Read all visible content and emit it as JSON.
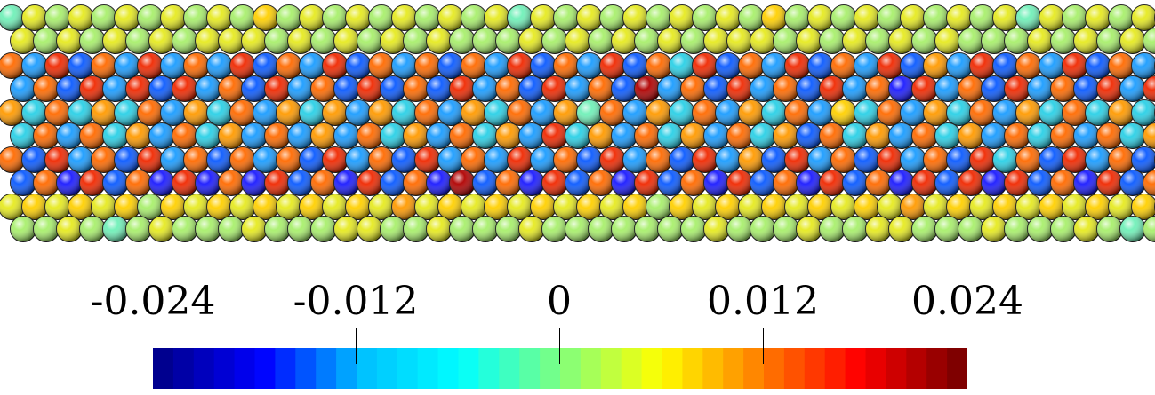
{
  "scene": {
    "description_free": "",
    "colormap": "jet",
    "atom_colors": [
      "#1a1aff",
      "#0a5aff",
      "#1a9cff",
      "#2ad0e6",
      "#6ff0b8",
      "#a8ef6c",
      "#e6ea20",
      "#ffd000",
      "#ff9a00",
      "#ff6a00",
      "#f02800",
      "#b00000"
    ]
  },
  "colorbar": {
    "ticks": [
      {
        "label": "-0.024",
        "value": -0.024
      },
      {
        "label": "-0.012",
        "value": -0.012
      },
      {
        "label": "0",
        "value": 0
      },
      {
        "label": "0.012",
        "value": 0.012
      },
      {
        "label": "0.024",
        "value": 0.024
      }
    ],
    "range": [
      -0.03,
      0.03
    ],
    "gradient": [
      "#00008f",
      "#0000ff",
      "#00c0ff",
      "#00ffff",
      "#7fff7f",
      "#ffff00",
      "#ff8000",
      "#ff0000",
      "#7f0000"
    ]
  }
}
